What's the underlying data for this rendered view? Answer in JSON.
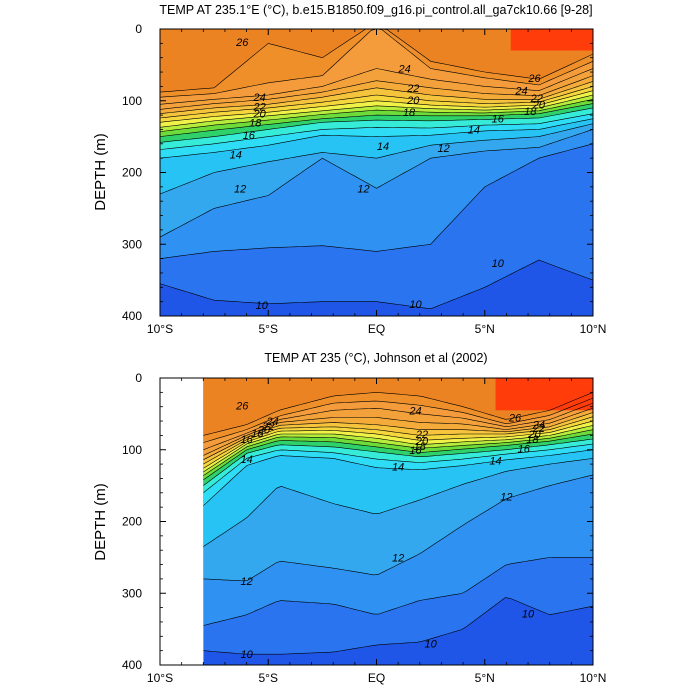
{
  "figure_title_top": "TEMP AT 235.1°E (°C), b.e15.B1850.f09_g16.pi_control.all_ga7ck10.66 [9-28]",
  "figure_title_bottom": "TEMP AT 235 (°C), Johnson et al (2002)",
  "palette": {
    "t9": "#1f56e8",
    "t10": "#2a74f0",
    "t11": "#2f92f2",
    "t12": "#33a8ef",
    "t13": "#27c3f4",
    "t14": "#2fdcf6",
    "t15": "#36ecd8",
    "t16": "#2fd26a",
    "t17": "#6ddc3a",
    "t18": "#b6ec3c",
    "t19": "#f1f247",
    "t20": "#f5d63d",
    "t21": "#f5c33c",
    "t22": "#f4ab3a",
    "t23": "#f3a13b",
    "t24": "#f49b3b",
    "t25": "#ee8f2a",
    "t26": "#ec8322",
    "t28": "#ff3c0a"
  },
  "chart_data": [
    {
      "type": "heatmap",
      "title": "TEMP AT 235.1°E (°C), b.e15.B1850.f09_g16.pi_control.all_ga7ck10.66 [9-28]",
      "xlabel": "",
      "ylabel": "DEPTH (m)",
      "x_range": [
        -10,
        10
      ],
      "y_range": [
        0,
        400
      ],
      "y_inverted": true,
      "x_ticks": [
        -10,
        -5,
        0,
        5,
        10
      ],
      "x_tick_labels": [
        "10°S",
        "5°S",
        "EQ",
        "5°N",
        "10°N"
      ],
      "y_ticks": [
        0,
        100,
        200,
        300,
        400
      ],
      "y_tick_labels": [
        "0",
        "100",
        "200",
        "300",
        "400"
      ],
      "data_x_range": [
        -10,
        10
      ],
      "contour_interval": 1,
      "contour_labels": [
        {
          "text": "26",
          "x": -6.2,
          "depth": 18
        },
        {
          "text": "24",
          "x": -5.4,
          "depth": 95
        },
        {
          "text": "22",
          "x": -5.4,
          "depth": 108
        },
        {
          "text": "20",
          "x": -5.4,
          "depth": 118
        },
        {
          "text": "18",
          "x": -5.6,
          "depth": 130
        },
        {
          "text": "16",
          "x": -5.9,
          "depth": 148
        },
        {
          "text": "14",
          "x": -6.5,
          "depth": 175
        },
        {
          "text": "12",
          "x": -6.3,
          "depth": 222
        },
        {
          "text": "10",
          "x": -5.3,
          "depth": 385
        },
        {
          "text": "24",
          "x": 1.3,
          "depth": 55
        },
        {
          "text": "22",
          "x": 1.7,
          "depth": 82
        },
        {
          "text": "20",
          "x": 1.7,
          "depth": 99
        },
        {
          "text": "18",
          "x": 1.5,
          "depth": 116
        },
        {
          "text": "14",
          "x": 0.3,
          "depth": 163
        },
        {
          "text": "12",
          "x": -0.6,
          "depth": 222
        },
        {
          "text": "10",
          "x": 1.8,
          "depth": 383
        },
        {
          "text": "26",
          "x": 7.3,
          "depth": 68
        },
        {
          "text": "24",
          "x": 6.7,
          "depth": 86
        },
        {
          "text": "22",
          "x": 7.4,
          "depth": 96
        },
        {
          "text": "20",
          "x": 7.5,
          "depth": 105
        },
        {
          "text": "18",
          "x": 7.1,
          "depth": 114
        },
        {
          "text": "16",
          "x": 5.6,
          "depth": 125
        },
        {
          "text": "14",
          "x": 4.5,
          "depth": 140
        },
        {
          "text": "12",
          "x": 3.1,
          "depth": 166
        },
        {
          "text": "10",
          "x": 5.6,
          "depth": 326
        }
      ],
      "profile": [
        {
          "x": -10,
          "isotherms": {
            "26": 88,
            "25": 95,
            "24": 105,
            "23": 112,
            "22": 118,
            "21": 124,
            "20": 130,
            "19": 137,
            "18": 143,
            "17": 150,
            "16": 158,
            "15": 168,
            "14": 180,
            "13": 230,
            "12": 290,
            "11": 320,
            "10": 355
          }
        },
        {
          "x": -7.5,
          "isotherms": {
            "26": 82,
            "25": 90,
            "24": 98,
            "23": 104,
            "22": 110,
            "21": 116,
            "20": 122,
            "19": 128,
            "18": 134,
            "17": 141,
            "16": 150,
            "15": 160,
            "14": 172,
            "13": 200,
            "12": 250,
            "11": 310,
            "10": 378
          }
        },
        {
          "x": -5,
          "isotherms": {
            "26": 20,
            "25": 75,
            "24": 92,
            "23": 98,
            "22": 105,
            "21": 110,
            "20": 116,
            "19": 121,
            "18": 127,
            "17": 133,
            "16": 140,
            "15": 150,
            "14": 162,
            "13": 185,
            "12": 232,
            "11": 305,
            "10": 383
          }
        },
        {
          "x": -2.5,
          "isotherms": {
            "26": 40,
            "25": 65,
            "24": 80,
            "23": 88,
            "22": 95,
            "21": 102,
            "20": 108,
            "19": 114,
            "18": 119,
            "17": 125,
            "16": 130,
            "15": 140,
            "14": 148,
            "13": 172,
            "12": 180,
            "11": 302,
            "10": 380
          }
        },
        {
          "x": 0,
          "isotherms": {
            "26": -10,
            "25": -5,
            "24": 55,
            "23": 72,
            "22": 82,
            "21": 92,
            "20": 100,
            "19": 107,
            "18": 113,
            "17": 120,
            "16": 127,
            "15": 137,
            "14": 150,
            "13": 180,
            "12": 222,
            "11": 310,
            "10": 380
          }
        },
        {
          "x": 2.5,
          "isotherms": {
            "26": 45,
            "25": 55,
            "24": 70,
            "23": 82,
            "22": 92,
            "21": 100,
            "20": 106,
            "19": 111,
            "18": 116,
            "17": 121,
            "16": 128,
            "15": 138,
            "14": 148,
            "13": 162,
            "12": 180,
            "11": 300,
            "10": 390
          }
        },
        {
          "x": 5,
          "isotherms": {
            "26": 60,
            "25": 68,
            "24": 80,
            "23": 90,
            "22": 98,
            "21": 104,
            "20": 109,
            "19": 113,
            "18": 117,
            "17": 121,
            "16": 126,
            "15": 134,
            "14": 142,
            "13": 155,
            "12": 170,
            "11": 220,
            "10": 360
          }
        },
        {
          "x": 7.5,
          "isotherms": {
            "26": 70,
            "25": 78,
            "24": 86,
            "23": 93,
            "22": 98,
            "21": 102,
            "20": 106,
            "19": 110,
            "18": 114,
            "17": 118,
            "16": 124,
            "15": 132,
            "14": 140,
            "13": 150,
            "12": 165,
            "11": 180,
            "10": 322
          }
        },
        {
          "x": 10,
          "isotherms": {
            "26": 35,
            "25": 45,
            "24": 55,
            "23": 65,
            "22": 73,
            "21": 80,
            "20": 86,
            "19": 92,
            "18": 98,
            "17": 104,
            "16": 110,
            "15": 118,
            "14": 125,
            "13": 132,
            "12": 140,
            "11": 160,
            "10": 350
          }
        }
      ],
      "warm_pool": {
        "value": 28,
        "x_range": [
          6.2,
          10
        ],
        "depth_range": [
          0,
          30
        ]
      }
    },
    {
      "type": "heatmap",
      "title": "TEMP AT 235 (°C), Johnson et al (2002)",
      "xlabel": "",
      "ylabel": "DEPTH (m)",
      "x_range": [
        -10,
        10
      ],
      "y_range": [
        0,
        400
      ],
      "y_inverted": true,
      "x_ticks": [
        -10,
        -5,
        0,
        5,
        10
      ],
      "x_tick_labels": [
        "10°S",
        "5°S",
        "EQ",
        "5°N",
        "10°N"
      ],
      "y_ticks": [
        0,
        100,
        200,
        300,
        400
      ],
      "y_tick_labels": [
        "0",
        "100",
        "200",
        "300",
        "400"
      ],
      "data_x_range": [
        -8,
        10
      ],
      "contour_interval": 1,
      "contour_labels": [
        {
          "text": "26",
          "x": -6.2,
          "depth": 38
        },
        {
          "text": "24",
          "x": -4.8,
          "depth": 60
        },
        {
          "text": "22",
          "x": -5.0,
          "depth": 67
        },
        {
          "text": "20",
          "x": -5.2,
          "depth": 72
        },
        {
          "text": "18",
          "x": -5.5,
          "depth": 77
        },
        {
          "text": "16",
          "x": -6.0,
          "depth": 85
        },
        {
          "text": "14",
          "x": -6.0,
          "depth": 113
        },
        {
          "text": "12",
          "x": -6.0,
          "depth": 283
        },
        {
          "text": "10",
          "x": -6.0,
          "depth": 385
        },
        {
          "text": "24",
          "x": 1.8,
          "depth": 45
        },
        {
          "text": "22",
          "x": 2.1,
          "depth": 78
        },
        {
          "text": "20",
          "x": 2.1,
          "depth": 88
        },
        {
          "text": "18",
          "x": 2.0,
          "depth": 95
        },
        {
          "text": "16",
          "x": 1.8,
          "depth": 100
        },
        {
          "text": "14",
          "x": 1.0,
          "depth": 123
        },
        {
          "text": "12",
          "x": 1.0,
          "depth": 250
        },
        {
          "text": "10",
          "x": 2.5,
          "depth": 370
        },
        {
          "text": "26",
          "x": 6.4,
          "depth": 55
        },
        {
          "text": "24",
          "x": 7.5,
          "depth": 65
        },
        {
          "text": "22",
          "x": 7.5,
          "depth": 70
        },
        {
          "text": "20",
          "x": 7.3,
          "depth": 78
        },
        {
          "text": "18",
          "x": 7.2,
          "depth": 85
        },
        {
          "text": "16",
          "x": 6.8,
          "depth": 98
        },
        {
          "text": "14",
          "x": 5.5,
          "depth": 115
        },
        {
          "text": "12",
          "x": 6.0,
          "depth": 165
        },
        {
          "text": "10",
          "x": 7.0,
          "depth": 328
        }
      ],
      "profile": [
        {
          "x": -8,
          "isotherms": {
            "26": 80,
            "25": 90,
            "24": 100,
            "23": 108,
            "22": 114,
            "21": 120,
            "20": 126,
            "19": 131,
            "18": 136,
            "17": 142,
            "16": 150,
            "15": 160,
            "14": 178,
            "13": 235,
            "12": 280,
            "11": 345,
            "10": 380
          }
        },
        {
          "x": -6,
          "isotherms": {
            "26": 65,
            "25": 72,
            "24": 77,
            "23": 80,
            "22": 83,
            "21": 86,
            "20": 89,
            "19": 92,
            "18": 96,
            "17": 100,
            "16": 105,
            "15": 112,
            "14": 122,
            "13": 195,
            "12": 283,
            "11": 330,
            "10": 385
          }
        },
        {
          "x": -4.5,
          "isotherms": {
            "26": 45,
            "25": 53,
            "24": 58,
            "23": 62,
            "22": 66,
            "21": 70,
            "20": 74,
            "19": 78,
            "18": 82,
            "17": 87,
            "16": 93,
            "15": 100,
            "14": 108,
            "13": 150,
            "12": 255,
            "11": 310,
            "10": 385
          }
        },
        {
          "x": -2,
          "isotherms": {
            "26": 25,
            "25": 35,
            "24": 45,
            "23": 55,
            "22": 62,
            "21": 68,
            "20": 73,
            "19": 78,
            "18": 83,
            "17": 89,
            "16": 96,
            "15": 104,
            "14": 112,
            "13": 175,
            "12": 265,
            "11": 315,
            "10": 382
          }
        },
        {
          "x": 0,
          "isotherms": {
            "26": 20,
            "25": 32,
            "24": 42,
            "23": 55,
            "22": 65,
            "21": 72,
            "20": 78,
            "19": 84,
            "18": 90,
            "17": 96,
            "16": 103,
            "15": 113,
            "14": 125,
            "13": 190,
            "12": 275,
            "11": 330,
            "10": 372
          }
        },
        {
          "x": 2,
          "isotherms": {
            "26": 25,
            "25": 38,
            "24": 50,
            "23": 62,
            "22": 72,
            "21": 80,
            "20": 87,
            "19": 93,
            "18": 98,
            "17": 104,
            "16": 110,
            "15": 118,
            "14": 128,
            "13": 170,
            "12": 245,
            "11": 310,
            "10": 368
          }
        },
        {
          "x": 4,
          "isotherms": {
            "26": 40,
            "25": 48,
            "24": 56,
            "23": 64,
            "22": 72,
            "21": 78,
            "20": 84,
            "19": 89,
            "18": 94,
            "17": 99,
            "16": 105,
            "15": 113,
            "14": 122,
            "13": 148,
            "12": 205,
            "11": 300,
            "10": 350
          }
        },
        {
          "x": 6,
          "isotherms": {
            "26": 58,
            "25": 64,
            "24": 68,
            "23": 72,
            "22": 75,
            "21": 78,
            "20": 82,
            "19": 86,
            "18": 90,
            "17": 94,
            "16": 100,
            "15": 106,
            "14": 114,
            "13": 130,
            "12": 168,
            "11": 260,
            "10": 305
          }
        },
        {
          "x": 8,
          "isotherms": {
            "26": 45,
            "25": 52,
            "24": 58,
            "23": 63,
            "22": 68,
            "21": 72,
            "20": 76,
            "19": 80,
            "18": 84,
            "17": 88,
            "16": 93,
            "15": 100,
            "14": 108,
            "13": 120,
            "12": 150,
            "11": 250,
            "10": 330
          }
        },
        {
          "x": 10,
          "isotherms": {
            "26": 20,
            "25": 28,
            "24": 35,
            "23": 42,
            "22": 48,
            "21": 54,
            "20": 60,
            "19": 66,
            "18": 72,
            "17": 78,
            "16": 85,
            "15": 92,
            "14": 100,
            "13": 112,
            "12": 135,
            "11": 250,
            "10": 318
          }
        }
      ],
      "warm_pool": {
        "value": 28,
        "x_range": [
          5.5,
          10
        ],
        "depth_range": [
          0,
          45
        ]
      }
    }
  ]
}
